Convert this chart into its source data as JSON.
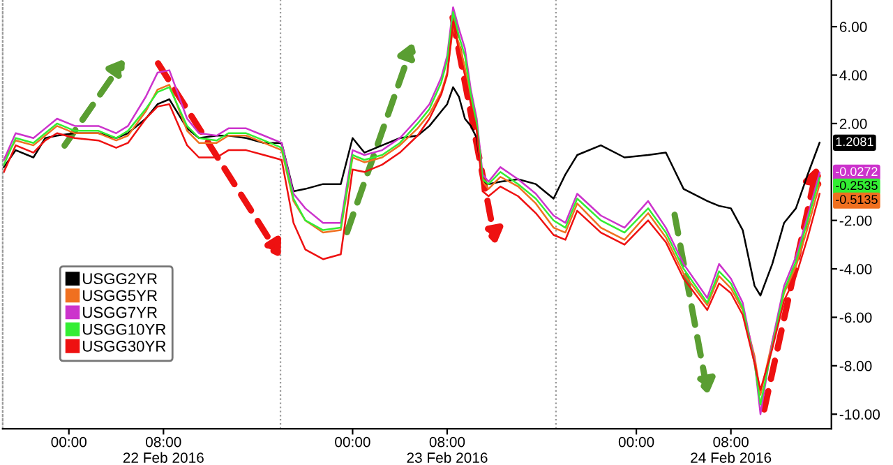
{
  "chart_data": {
    "type": "line",
    "x": [
      "2016-02-21T18:30",
      "2016-02-21T19:30",
      "2016-02-21T21:00",
      "2016-02-21T22:00",
      "2016-02-21T23:00",
      "2016-02-22T00:30",
      "2016-02-22T02:30",
      "2016-02-22T04:00",
      "2016-02-22T05:00",
      "2016-02-22T06:30",
      "2016-02-22T07:30",
      "2016-02-22T08:30",
      "2016-02-22T10:00",
      "2016-02-22T11:00",
      "2016-02-22T12:30",
      "2016-02-22T13:30",
      "2016-02-22T15:00",
      "2016-02-22T16:30",
      "2016-02-22T18:00",
      "2016-02-22T19:00",
      "2016-02-22T20:00",
      "2016-02-22T21:30",
      "2016-02-22T23:00",
      "2016-02-23T00:00",
      "2016-02-23T01:00",
      "2016-02-23T02:30",
      "2016-02-23T04:00",
      "2016-02-23T05:30",
      "2016-02-23T06:30",
      "2016-02-23T07:30",
      "2016-02-23T08:00",
      "2016-02-23T08:30",
      "2016-02-23T09:00",
      "2016-02-23T09:30",
      "2016-02-23T10:00",
      "2016-02-23T10:30",
      "2016-02-23T11:00",
      "2016-02-23T11:30",
      "2016-02-23T12:30",
      "2016-02-23T14:00",
      "2016-02-23T15:30",
      "2016-02-23T17:00",
      "2016-02-23T18:00",
      "2016-02-23T19:00",
      "2016-02-23T21:00",
      "2016-02-23T23:00",
      "2016-02-24T01:00",
      "2016-02-24T02:30",
      "2016-02-24T04:00",
      "2016-02-24T06:00",
      "2016-02-24T07:00",
      "2016-02-24T08:00",
      "2016-02-24T09:00",
      "2016-02-24T10:00",
      "2016-02-24T10:30",
      "2016-02-24T11:30",
      "2016-02-24T12:30",
      "2016-02-24T13:30",
      "2016-02-24T14:30",
      "2016-02-24T15:30"
    ],
    "series": [
      {
        "name": "USGG2YR",
        "color": "#000000",
        "values": [
          0.2,
          0.9,
          0.6,
          1.4,
          1.5,
          1.6,
          1.6,
          1.4,
          1.6,
          2.2,
          2.8,
          3.0,
          1.8,
          1.4,
          1.5,
          1.5,
          1.4,
          1.2,
          1.2,
          -0.8,
          -0.7,
          -0.5,
          -0.5,
          1.4,
          0.8,
          1.1,
          1.4,
          1.5,
          1.9,
          2.5,
          2.8,
          3.5,
          3.1,
          2.2,
          1.9,
          1.4,
          -0.4,
          -0.5,
          -0.4,
          -0.3,
          -0.5,
          -1.1,
          -0.1,
          0.7,
          1.1,
          0.6,
          0.7,
          0.8,
          -0.7,
          -1.2,
          -1.4,
          -1.5,
          -2.4,
          -4.7,
          -5.1,
          -3.8,
          -2.1,
          -1.5,
          -0.1,
          1.2081
        ],
        "value_labels": [
          null,
          null,
          null,
          null,
          null,
          null,
          null,
          null,
          null,
          null,
          null,
          null,
          null,
          null,
          null,
          null,
          null,
          null,
          null,
          null,
          null,
          null,
          null,
          null,
          null,
          null,
          null,
          null,
          null,
          null,
          null,
          null,
          null,
          null,
          null,
          null,
          null,
          null,
          null,
          null,
          null,
          null,
          null,
          null,
          null,
          null,
          null,
          null,
          null,
          null,
          null,
          null,
          null,
          null,
          null,
          null,
          null,
          null,
          null,
          "1.2081"
        ]
      },
      {
        "name": "USGG5YR",
        "color": "#f07020",
        "values": [
          0.5,
          1.3,
          1.1,
          1.5,
          1.9,
          1.6,
          1.6,
          1.3,
          1.5,
          2.5,
          3.4,
          3.6,
          1.7,
          1.2,
          1.2,
          1.5,
          1.5,
          1.2,
          0.9,
          -1.2,
          -2.0,
          -2.5,
          -2.4,
          0.6,
          0.4,
          0.6,
          1.1,
          1.8,
          2.4,
          3.3,
          4.1,
          6.0,
          5.3,
          4.3,
          3.0,
          1.9,
          -0.4,
          -0.7,
          -0.2,
          -0.6,
          -1.3,
          -2.3,
          -2.5,
          -1.3,
          -2.3,
          -2.8,
          -1.7,
          -2.7,
          -4.2,
          -5.5,
          -4.3,
          -4.8,
          -5.7,
          -7.6,
          -9.2,
          -7.0,
          -5.0,
          -3.9,
          -2.3,
          -0.5135
        ],
        "value_labels": [
          null,
          null,
          null,
          null,
          null,
          null,
          null,
          null,
          null,
          null,
          null,
          null,
          null,
          null,
          null,
          null,
          null,
          null,
          null,
          null,
          null,
          null,
          null,
          null,
          null,
          null,
          null,
          null,
          null,
          null,
          null,
          null,
          null,
          null,
          null,
          null,
          null,
          null,
          null,
          null,
          null,
          null,
          null,
          null,
          null,
          null,
          null,
          null,
          null,
          null,
          null,
          null,
          null,
          null,
          null,
          null,
          null,
          null,
          null,
          "-0.5135"
        ]
      },
      {
        "name": "USGG7YR",
        "color": "#cc33cc",
        "values": [
          0.5,
          1.6,
          1.4,
          1.8,
          2.2,
          1.9,
          1.9,
          1.6,
          1.9,
          3.1,
          4.1,
          4.2,
          2.2,
          1.6,
          1.5,
          1.8,
          1.8,
          1.5,
          1.2,
          -0.9,
          -1.5,
          -2.1,
          -2.1,
          0.9,
          0.7,
          0.9,
          1.4,
          2.2,
          2.8,
          3.9,
          4.8,
          6.8,
          5.9,
          5.1,
          3.4,
          2.2,
          -0.1,
          -0.4,
          0.2,
          -0.3,
          -0.9,
          -1.8,
          -2.1,
          -0.9,
          -1.8,
          -2.3,
          -1.2,
          -2.3,
          -3.8,
          -5.2,
          -3.8,
          -4.4,
          -5.4,
          -7.8,
          -10.0,
          -7.0,
          -4.7,
          -3.5,
          -1.8,
          -0.0272
        ],
        "value_labels": [
          null,
          null,
          null,
          null,
          null,
          null,
          null,
          null,
          null,
          null,
          null,
          null,
          null,
          null,
          null,
          null,
          null,
          null,
          null,
          null,
          null,
          null,
          null,
          null,
          null,
          null,
          null,
          null,
          null,
          null,
          null,
          null,
          null,
          null,
          null,
          null,
          null,
          null,
          null,
          null,
          null,
          null,
          null,
          null,
          null,
          null,
          null,
          null,
          null,
          null,
          null,
          null,
          null,
          null,
          null,
          null,
          null,
          null,
          null,
          "-0.0272"
        ]
      },
      {
        "name": "USGG10YR",
        "color": "#33ee33",
        "values": [
          0.3,
          1.4,
          1.2,
          1.6,
          2.0,
          1.7,
          1.7,
          1.4,
          1.7,
          2.6,
          3.3,
          3.5,
          1.9,
          1.4,
          1.3,
          1.6,
          1.6,
          1.3,
          1.0,
          -1.1,
          -2.0,
          -2.4,
          -2.3,
          0.7,
          0.5,
          0.7,
          1.2,
          2.0,
          2.6,
          3.7,
          4.6,
          6.6,
          5.6,
          4.8,
          3.2,
          2.0,
          -0.3,
          -0.5,
          0.0,
          -0.5,
          -1.1,
          -2.0,
          -2.3,
          -1.1,
          -2.0,
          -2.5,
          -1.5,
          -2.5,
          -4.0,
          -5.4,
          -4.1,
          -4.6,
          -5.6,
          -7.9,
          -9.6,
          -7.2,
          -4.9,
          -3.7,
          -2.0,
          -0.2535
        ],
        "value_labels": [
          null,
          null,
          null,
          null,
          null,
          null,
          null,
          null,
          null,
          null,
          null,
          null,
          null,
          null,
          null,
          null,
          null,
          null,
          null,
          null,
          null,
          null,
          null,
          null,
          null,
          null,
          null,
          null,
          null,
          null,
          null,
          null,
          null,
          null,
          null,
          null,
          null,
          null,
          null,
          null,
          null,
          null,
          null,
          null,
          null,
          null,
          null,
          null,
          null,
          null,
          null,
          null,
          null,
          null,
          null,
          null,
          null,
          null,
          null,
          "-0.2535"
        ]
      },
      {
        "name": "USGG30YR",
        "color": "#ee1111",
        "values": [
          0.0,
          1.1,
          0.8,
          1.3,
          1.6,
          1.4,
          1.3,
          1.0,
          1.2,
          2.2,
          2.7,
          2.8,
          1.1,
          0.6,
          0.6,
          0.9,
          0.9,
          0.7,
          0.5,
          -2.1,
          -3.2,
          -3.6,
          -3.4,
          0.1,
          0.0,
          0.3,
          0.8,
          1.5,
          2.2,
          3.2,
          4.0,
          6.2,
          5.0,
          4.0,
          2.8,
          1.7,
          -0.8,
          -1.0,
          -0.6,
          -1.0,
          -1.7,
          -2.6,
          -2.8,
          -1.6,
          -2.5,
          -3.0,
          -2.0,
          -2.9,
          -4.4,
          -5.7,
          -4.6,
          -5.0,
          -5.9,
          -7.9,
          -9.0,
          -7.3,
          -5.3,
          -4.3,
          -2.7,
          -0.9
        ]
      }
    ],
    "xlim": [
      "2016-02-21T18:24",
      "2016-02-24T16:30"
    ],
    "xticks": [
      {
        "value": "2016-02-22T00:00",
        "label": "00:00"
      },
      {
        "value": "2016-02-22T08:00",
        "label": "08:00\n22 Feb 2016"
      },
      {
        "value": "2016-02-23T00:00",
        "label": "00:00"
      },
      {
        "value": "2016-02-23T08:00",
        "label": "08:00\n23 Feb 2016"
      },
      {
        "value": "2016-02-24T00:00",
        "label": "00:00"
      },
      {
        "value": "2016-02-24T08:00",
        "label": "08:00\n24 Feb 2016"
      }
    ],
    "ylim": [
      -10.6,
      7.1
    ],
    "yticks": [
      {
        "value": 6,
        "label": "6.00"
      },
      {
        "value": 4,
        "label": "4.00"
      },
      {
        "value": 2,
        "label": "2.00"
      },
      {
        "value": -2,
        "label": "-2.00"
      },
      {
        "value": -4,
        "label": "-4.00"
      },
      {
        "value": -6,
        "label": "-6.00"
      },
      {
        "value": -8,
        "label": "-8.00"
      },
      {
        "value": -10,
        "label": "-10.00"
      }
    ],
    "ref_lines": [
      {
        "axis": "x",
        "value": "2016-02-22T17:54",
        "color": "#999999",
        "line_style": "dotted"
      },
      {
        "axis": "x",
        "value": "2016-02-23T17:12",
        "color": "#999999",
        "line_style": "dotted"
      }
    ],
    "legend": "bottom left",
    "grid": false,
    "marker": "none",
    "line_style": "solid"
  }
}
